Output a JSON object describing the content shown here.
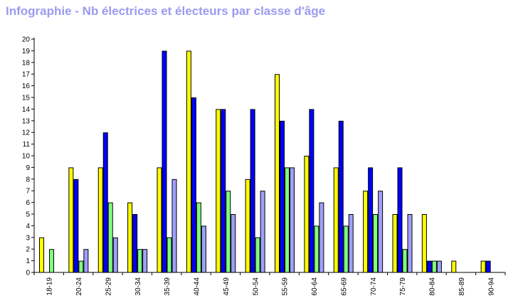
{
  "chart_data": {
    "type": "bar",
    "title": "Infographie - Nb électrices et électeurs par classe d'âge",
    "xlabel": "",
    "ylabel": "",
    "ylim": [
      0,
      20
    ],
    "yticks": [
      "0",
      "1",
      "2",
      "3",
      "4",
      "5",
      "6",
      "7",
      "8",
      "9",
      "10",
      "11",
      "12",
      "13",
      "14",
      "15",
      "16",
      "17",
      "18",
      "19",
      "20"
    ],
    "grid": false,
    "legend": "none",
    "categories": [
      "18-19",
      "20-24",
      "25-29",
      "30-34",
      "35-39",
      "40-44",
      "45-49",
      "50-54",
      "55-59",
      "60-64",
      "65-69",
      "70-74",
      "75-79",
      "80-84",
      "85-89",
      "90-94"
    ],
    "series": [
      {
        "color": "#ffff00",
        "values": [
          3,
          9,
          9,
          6,
          9,
          19,
          14,
          8,
          17,
          10,
          9,
          7,
          5,
          5,
          1,
          1
        ]
      },
      {
        "color": "#0000ff",
        "values": [
          0,
          8,
          12,
          5,
          19,
          15,
          14,
          14,
          13,
          14,
          13,
          9,
          9,
          1,
          0,
          1
        ]
      },
      {
        "color": "#80ff80",
        "values": [
          2,
          1,
          6,
          2,
          3,
          6,
          7,
          3,
          9,
          4,
          4,
          5,
          2,
          1,
          0,
          0
        ]
      },
      {
        "color": "#a0a0ff",
        "values": [
          0,
          2,
          3,
          2,
          8,
          4,
          5,
          7,
          9,
          6,
          5,
          7,
          5,
          1,
          0,
          0
        ]
      }
    ]
  }
}
